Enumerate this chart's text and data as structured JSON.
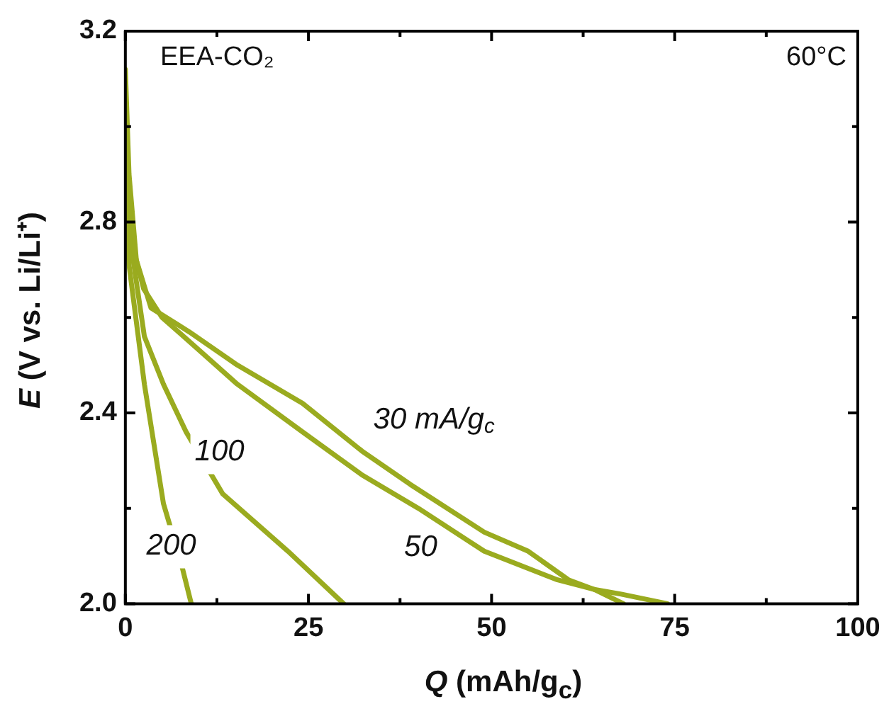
{
  "chart_data": {
    "type": "line",
    "xlabel": "Q (mAh/g$_{c}$)",
    "ylabel": "E (V vs. Li/Li⁺)",
    "annotations": [
      "EEA-CO₂",
      "60°C"
    ],
    "xlim": [
      0,
      100
    ],
    "ylim": [
      2.0,
      3.2
    ],
    "xticks": [
      0,
      {
        "value": 12.5,
        "label": null
      },
      25,
      {
        "value": 37.5,
        "label": null
      },
      50,
      {
        "value": 62.5,
        "label": null
      },
      75,
      {
        "value": 87.5,
        "label": null
      },
      100
    ],
    "yticks": [
      {
        "value": 2.0,
        "label": "2.0"
      },
      {
        "value": 2.2,
        "label": null
      },
      {
        "value": 2.4,
        "label": "2.4"
      },
      {
        "value": 2.6,
        "label": null
      },
      {
        "value": 2.8,
        "label": "2.8"
      },
      {
        "value": 3.0,
        "label": null
      },
      {
        "value": 3.2,
        "label": "3.2"
      }
    ],
    "grid": false,
    "legend": false,
    "marker": "none",
    "line_style": "solid",
    "series": [
      {
        "name": "30 mA/g$_{c}$",
        "color": "#9aab1f",
        "x": [
          0,
          0.5,
          1.5,
          3.5,
          8.7,
          15.3,
          24.2,
          32.3,
          38.9,
          49,
          55,
          60.5,
          64,
          68
        ],
        "values": [
          3.12,
          2.9,
          2.72,
          2.62,
          2.57,
          2.5,
          2.42,
          2.32,
          2.25,
          2.15,
          2.11,
          2.05,
          2.03,
          2.0
        ]
      },
      {
        "name": "50",
        "color": "#9aab1f",
        "x": [
          0,
          1,
          2.5,
          5,
          8.7,
          15.3,
          24.2,
          32.3,
          40,
          49,
          59,
          64,
          67.7,
          74
        ],
        "values": [
          3.0,
          2.75,
          2.66,
          2.6,
          2.55,
          2.46,
          2.36,
          2.27,
          2.2,
          2.11,
          2.05,
          2.03,
          2.02,
          2.0
        ]
      },
      {
        "name": "100",
        "color": "#9aab1f",
        "x": [
          0,
          0.5,
          2.6,
          5.2,
          8.3,
          13.3,
          22.2,
          29.8
        ],
        "values": [
          2.95,
          2.78,
          2.56,
          2.46,
          2.36,
          2.23,
          2.11,
          2.0
        ]
      },
      {
        "name": "200",
        "color": "#9aab1f",
        "x": [
          0,
          0.5,
          2.6,
          5.2,
          7.7,
          9
        ],
        "values": [
          2.85,
          2.71,
          2.46,
          2.21,
          2.08,
          2.0
        ]
      }
    ]
  }
}
